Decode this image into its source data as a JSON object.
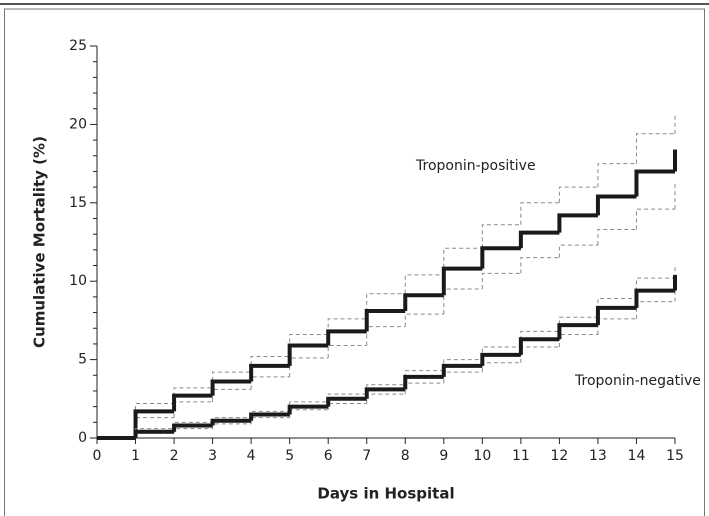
{
  "chart_data": {
    "type": "step",
    "xlabel": "Days in Hospital",
    "ylabel": "Cumulative Mortality (%)",
    "x": [
      0,
      1,
      2,
      3,
      4,
      5,
      6,
      7,
      8,
      9,
      10,
      11,
      12,
      13,
      14,
      15
    ],
    "xlim": [
      0,
      15
    ],
    "xticks": [
      0,
      1,
      2,
      3,
      4,
      5,
      6,
      7,
      8,
      9,
      10,
      11,
      12,
      13,
      14,
      15
    ],
    "ylim": [
      0,
      25
    ],
    "yticks": [
      0,
      5,
      10,
      15,
      20,
      25
    ],
    "yminorticks": [
      1,
      2,
      3,
      4,
      6,
      7,
      8,
      9,
      11,
      12,
      13,
      14,
      16,
      17,
      18,
      19,
      21,
      22,
      23,
      24
    ],
    "series": [
      {
        "name": "Troponin-positive",
        "color": "#1a1a1a",
        "ci_color": "#8a8a8a",
        "values": [
          0,
          1.7,
          2.7,
          3.6,
          4.6,
          5.9,
          6.8,
          8.1,
          9.1,
          10.8,
          12.1,
          13.1,
          14.2,
          15.4,
          17.0,
          18.4
        ],
        "ci_upper": [
          0,
          2.2,
          3.2,
          4.2,
          5.2,
          6.6,
          7.6,
          9.2,
          10.4,
          12.1,
          13.6,
          15.0,
          16.0,
          17.5,
          19.4,
          20.7
        ],
        "ci_lower": [
          0,
          1.3,
          2.3,
          3.1,
          3.9,
          5.1,
          5.9,
          7.1,
          7.9,
          9.5,
          10.5,
          11.5,
          12.3,
          13.3,
          14.6,
          16.3
        ]
      },
      {
        "name": "Troponin-negative",
        "color": "#1a1a1a",
        "ci_color": "#8a8a8a",
        "values": [
          0,
          0.4,
          0.8,
          1.1,
          1.5,
          2.0,
          2.5,
          3.1,
          3.9,
          4.6,
          5.3,
          6.3,
          7.2,
          8.3,
          9.4,
          10.4
        ],
        "ci_upper": [
          0,
          0.6,
          1.0,
          1.3,
          1.7,
          2.3,
          2.8,
          3.4,
          4.3,
          5.0,
          5.8,
          6.8,
          7.7,
          8.9,
          10.2,
          11.1
        ],
        "ci_lower": [
          0,
          0.3,
          0.6,
          0.9,
          1.3,
          1.8,
          2.2,
          2.8,
          3.5,
          4.2,
          4.8,
          5.8,
          6.6,
          7.6,
          8.7,
          9.6
        ]
      }
    ]
  }
}
